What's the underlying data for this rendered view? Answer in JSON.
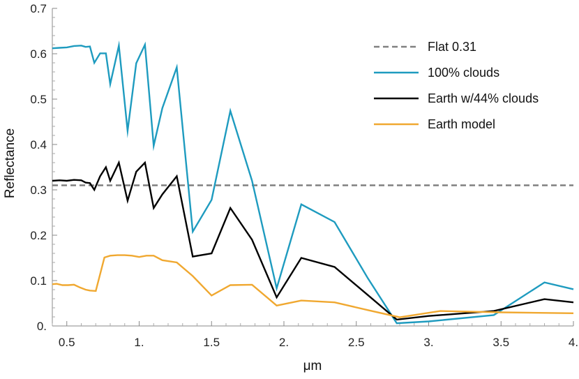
{
  "chart_data": {
    "type": "line",
    "xlabel": "μm",
    "ylabel": "Reflectance",
    "xlim": [
      0.4,
      4.0
    ],
    "ylim": [
      0.0,
      0.7
    ],
    "x_ticks": [
      0.5,
      1.0,
      1.5,
      2.0,
      2.5,
      3.0,
      3.5,
      4.0
    ],
    "x_tick_labels": [
      "0.5",
      "1.",
      "1.5",
      "2.",
      "2.5",
      "3.",
      "3.5",
      "4."
    ],
    "y_ticks": [
      0.0,
      0.1,
      0.2,
      0.3,
      0.4,
      0.5,
      0.6,
      0.7
    ],
    "y_tick_labels": [
      "0.",
      "0.1",
      "0.2",
      "0.3",
      "0.4",
      "0.5",
      "0.6",
      "0.7"
    ],
    "legend_position": "top-right",
    "series": [
      {
        "name": "Flat 0.31",
        "color": "#808080",
        "dashed": true,
        "x": [
          0.4,
          4.0
        ],
        "y": [
          0.31,
          0.31
        ]
      },
      {
        "name": "100% clouds",
        "color": "#1e9bbf",
        "dashed": false,
        "x": [
          0.4,
          0.45,
          0.5,
          0.55,
          0.6,
          0.63,
          0.66,
          0.69,
          0.73,
          0.77,
          0.8,
          0.86,
          0.92,
          0.98,
          1.04,
          1.1,
          1.16,
          1.26,
          1.37,
          1.5,
          1.63,
          1.78,
          1.95,
          2.12,
          2.35,
          2.58,
          2.78,
          3.0,
          3.45,
          3.8,
          4.0
        ],
        "y": [
          0.612,
          0.613,
          0.614,
          0.617,
          0.618,
          0.615,
          0.616,
          0.58,
          0.601,
          0.601,
          0.533,
          0.618,
          0.43,
          0.579,
          0.62,
          0.397,
          0.48,
          0.57,
          0.208,
          0.278,
          0.474,
          0.32,
          0.083,
          0.268,
          0.229,
          0.105,
          0.006,
          0.01,
          0.024,
          0.096,
          0.081
        ]
      },
      {
        "name": "Earth w/44% clouds",
        "color": "#000000",
        "dashed": false,
        "x": [
          0.4,
          0.45,
          0.5,
          0.55,
          0.6,
          0.63,
          0.66,
          0.69,
          0.73,
          0.77,
          0.8,
          0.86,
          0.92,
          0.98,
          1.04,
          1.1,
          1.16,
          1.26,
          1.37,
          1.5,
          1.63,
          1.78,
          1.95,
          2.12,
          2.35,
          2.58,
          2.78,
          3.0,
          3.45,
          3.8,
          4.0
        ],
        "y": [
          0.32,
          0.321,
          0.32,
          0.322,
          0.321,
          0.316,
          0.315,
          0.3,
          0.33,
          0.35,
          0.32,
          0.36,
          0.276,
          0.34,
          0.36,
          0.26,
          0.29,
          0.33,
          0.153,
          0.16,
          0.26,
          0.19,
          0.063,
          0.15,
          0.13,
          0.068,
          0.014,
          0.022,
          0.033,
          0.059,
          0.052
        ]
      },
      {
        "name": "Earth model",
        "color": "#f0a830",
        "dashed": false,
        "x": [
          0.4,
          0.43,
          0.47,
          0.51,
          0.55,
          0.59,
          0.63,
          0.66,
          0.7,
          0.76,
          0.8,
          0.85,
          0.9,
          0.95,
          1.0,
          1.05,
          1.1,
          1.16,
          1.26,
          1.37,
          1.5,
          1.63,
          1.78,
          1.95,
          2.12,
          2.35,
          2.58,
          2.8,
          3.08,
          3.5,
          4.0
        ],
        "y": [
          0.092,
          0.093,
          0.09,
          0.09,
          0.091,
          0.085,
          0.08,
          0.078,
          0.077,
          0.151,
          0.155,
          0.156,
          0.156,
          0.155,
          0.152,
          0.155,
          0.155,
          0.145,
          0.14,
          0.11,
          0.067,
          0.09,
          0.091,
          0.045,
          0.056,
          0.052,
          0.035,
          0.019,
          0.033,
          0.03,
          0.028
        ]
      }
    ]
  }
}
